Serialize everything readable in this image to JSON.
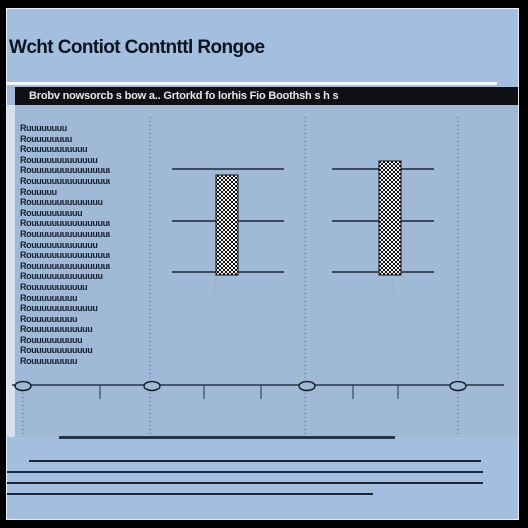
{
  "title": "Wcht Contiot Contnttl Rongoe",
  "panel": {
    "header": "Brobv nowsorcb s bow a.. Grtorkd fo lorhis  Fio  Boothsh s h s"
  },
  "row_labels": [
    "Ruuuuuuuu",
    "Rouuuuuuuu",
    "Rouuuuuuuuuuu",
    "Rouuuuuuuuuuuuu",
    "Rouuuuuuuuuuuuuuuu",
    "Rouuuuuuuuuuuuuuuuuuu",
    "Rouuuuu",
    "Rouuuuuuuuuuuuuu",
    "Rouuuuuuuuuu",
    "Rouuuuuuuuuuuuuuuuu",
    "Rouuuuuuuuuuuuuuuuuuu",
    "Rouuuuuuuuuuuuu",
    "Rouuuuuuuuuuuuuuuuuu",
    "Rouuuuuuuuuuuuuuuuuuuu",
    "Rouuuuuuuuuuuuuu",
    "Rouuuuuuuuuuu",
    "Rouuuuuuuuu",
    "Rouuuuuuuuuuuuu",
    "Rouuuuuuuuu",
    "Rouuuuuuuuuuuu",
    "Rouuuuuuuuuu",
    "Rouuuuuuuuuuuu",
    "Rouuuuuuuuu"
  ],
  "colors": {
    "background": "#a4bedf",
    "panel": "#9fb9d7",
    "bar": "#0e1014",
    "marker": "#1a1f28"
  }
}
